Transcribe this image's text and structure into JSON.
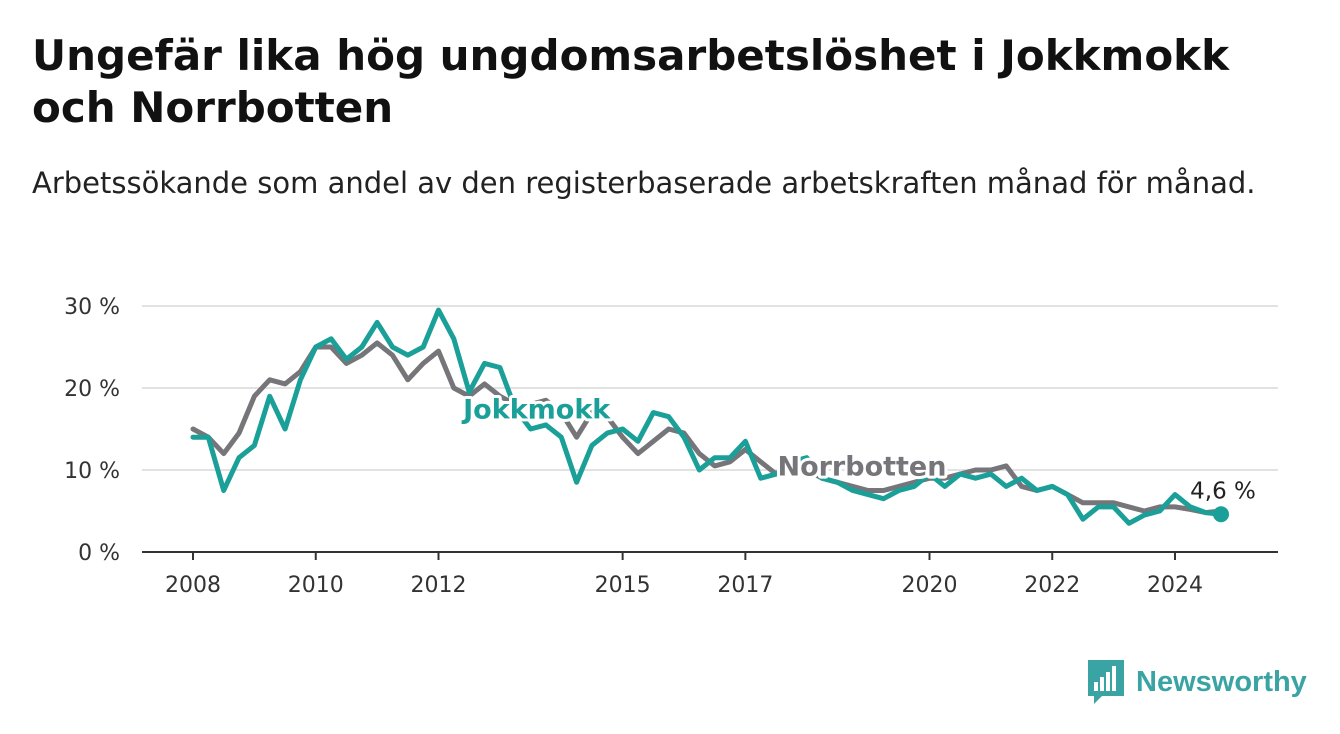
{
  "title": "Ungefär lika hög ungdomsarbetslöshet i Jokkmokk och Norrbotten",
  "subtitle": "Arbetssökande som andel av den registerbaserade arbetskraften månad för månad.",
  "brand": {
    "name": "Newsworthy",
    "color": "#3aa3a3",
    "icon": "newsworthy-bar-chart-icon"
  },
  "chart_data": {
    "type": "line",
    "x_unit": "year",
    "y_unit": "%",
    "ylim": [
      0,
      30
    ],
    "yticks": [
      0,
      10,
      20,
      30
    ],
    "ytick_labels": [
      "0 %",
      "10 %",
      "20 %",
      "30 %"
    ],
    "xticks": [
      2008,
      2010,
      2012,
      2015,
      2017,
      2020,
      2022,
      2024
    ],
    "xtick_labels": [
      "2008",
      "2010",
      "2012",
      "2015",
      "2017",
      "2020",
      "2022",
      "2024"
    ],
    "grid": true,
    "end_label": "4,6 %",
    "series": [
      {
        "name": "Norrbotten",
        "color": "#76767a",
        "x": [
          2008.0,
          2008.25,
          2008.5,
          2008.75,
          2009.0,
          2009.25,
          2009.5,
          2009.75,
          2010.0,
          2010.25,
          2010.5,
          2010.75,
          2011.0,
          2011.25,
          2011.5,
          2011.75,
          2012.0,
          2012.25,
          2012.5,
          2012.75,
          2013.0,
          2013.25,
          2013.5,
          2013.75,
          2014.0,
          2014.25,
          2014.5,
          2014.75,
          2015.0,
          2015.25,
          2015.5,
          2015.75,
          2016.0,
          2016.25,
          2016.5,
          2016.75,
          2017.0,
          2017.25,
          2017.5,
          2017.75,
          2018.0,
          2018.25,
          2018.5,
          2018.75,
          2019.0,
          2019.25,
          2019.5,
          2019.75,
          2020.0,
          2020.25,
          2020.5,
          2020.75,
          2021.0,
          2021.25,
          2021.5,
          2021.75,
          2022.0,
          2022.25,
          2022.5,
          2022.75,
          2023.0,
          2023.25,
          2023.5,
          2023.75,
          2024.0,
          2024.25,
          2024.5,
          2024.75
        ],
        "values": [
          15,
          14,
          12,
          14.5,
          19,
          21,
          20.5,
          22,
          25,
          25,
          23,
          24,
          25.5,
          24,
          21,
          23,
          24.5,
          20,
          19,
          20.5,
          19,
          18,
          18,
          18.5,
          17,
          14,
          17,
          16.5,
          14,
          12,
          13.5,
          15,
          14.5,
          12,
          10.5,
          11,
          12.5,
          11,
          9.5,
          10.5,
          10,
          9,
          8.5,
          8,
          7.5,
          7.5,
          8,
          8.5,
          9,
          9,
          9.5,
          10,
          10,
          10.5,
          8,
          7.5,
          8,
          7,
          6,
          6,
          6,
          5.5,
          5,
          5.5,
          5.5,
          5.2,
          4.8,
          5
        ]
      },
      {
        "name": "Jokkmokk",
        "color": "#1aa098",
        "x": [
          2008.0,
          2008.25,
          2008.5,
          2008.75,
          2009.0,
          2009.25,
          2009.5,
          2009.75,
          2010.0,
          2010.25,
          2010.5,
          2010.75,
          2011.0,
          2011.25,
          2011.5,
          2011.75,
          2012.0,
          2012.25,
          2012.5,
          2012.75,
          2013.0,
          2013.25,
          2013.5,
          2013.75,
          2014.0,
          2014.25,
          2014.5,
          2014.75,
          2015.0,
          2015.25,
          2015.5,
          2015.75,
          2016.0,
          2016.25,
          2016.5,
          2016.75,
          2017.0,
          2017.25,
          2017.5,
          2017.75,
          2018.0,
          2018.25,
          2018.5,
          2018.75,
          2019.0,
          2019.25,
          2019.5,
          2019.75,
          2020.0,
          2020.25,
          2020.5,
          2020.75,
          2021.0,
          2021.25,
          2021.5,
          2021.75,
          2022.0,
          2022.25,
          2022.5,
          2022.75,
          2023.0,
          2023.25,
          2023.5,
          2023.75,
          2024.0,
          2024.25,
          2024.5,
          2024.75
        ],
        "values": [
          14,
          14,
          7.5,
          11.5,
          13,
          19,
          15,
          21,
          25,
          26,
          23.5,
          25,
          28,
          25,
          24,
          25,
          29.5,
          26,
          19.5,
          23,
          22.5,
          17.5,
          15,
          15.5,
          14,
          8.5,
          13,
          14.5,
          15,
          13.5,
          17,
          16.5,
          14,
          10,
          11.5,
          11.5,
          13.5,
          9,
          9.5,
          11,
          11.5,
          9,
          8.5,
          7.5,
          7,
          6.5,
          7.5,
          8,
          9.5,
          8,
          9.5,
          9,
          9.5,
          8,
          9,
          7.5,
          8,
          7,
          4,
          5.5,
          5.5,
          3.5,
          4.5,
          5,
          7,
          5.5,
          4.8,
          4.6
        ]
      }
    ],
    "line_labels": [
      "Jokkmokk",
      "Norrbotten"
    ]
  }
}
